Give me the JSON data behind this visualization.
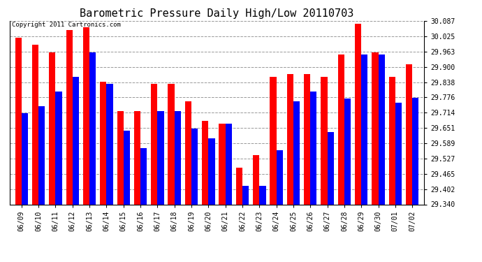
{
  "title": "Barometric Pressure Daily High/Low 20110703",
  "copyright": "Copyright 2011 Cartronics.com",
  "dates": [
    "06/09",
    "06/10",
    "06/11",
    "06/12",
    "06/13",
    "06/14",
    "06/15",
    "06/16",
    "06/17",
    "06/18",
    "06/19",
    "06/20",
    "06/21",
    "06/22",
    "06/23",
    "06/24",
    "06/25",
    "06/26",
    "06/27",
    "06/28",
    "06/29",
    "06/30",
    "07/01",
    "07/02"
  ],
  "highs": [
    30.02,
    29.99,
    29.96,
    30.05,
    30.06,
    29.84,
    29.72,
    29.72,
    29.83,
    29.83,
    29.76,
    29.68,
    29.67,
    29.49,
    29.54,
    29.86,
    29.87,
    29.87,
    29.86,
    29.95,
    30.075,
    29.96,
    29.86,
    29.91
  ],
  "lows": [
    29.71,
    29.74,
    29.8,
    29.86,
    29.96,
    29.83,
    29.64,
    29.57,
    29.72,
    29.72,
    29.65,
    29.61,
    29.67,
    29.415,
    29.415,
    29.56,
    29.76,
    29.8,
    29.635,
    29.77,
    29.95,
    29.95,
    29.755,
    29.775
  ],
  "ymin": 29.34,
  "ymax": 30.087,
  "yticks": [
    29.34,
    29.402,
    29.465,
    29.527,
    29.589,
    29.651,
    29.714,
    29.776,
    29.838,
    29.9,
    29.963,
    30.025,
    30.087
  ],
  "high_color": "#ff0000",
  "low_color": "#0000ff",
  "bg_color": "#ffffff",
  "grid_color": "#999999",
  "title_fontsize": 11,
  "tick_fontsize": 7,
  "copyright_fontsize": 6.5
}
